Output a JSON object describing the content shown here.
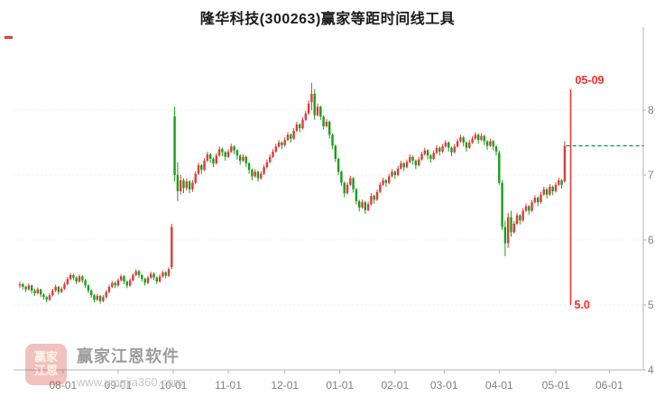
{
  "chart_data": {
    "type": "candlestick",
    "title": "隆华科技(300263)赢家等距时间线工具",
    "ylabel": "",
    "xlabel": "",
    "ylim": [
      4.0,
      8.6
    ],
    "y_ticks": [
      8,
      7,
      6,
      5,
      4
    ],
    "y_axis_side": "right",
    "grid": "faint-dotted",
    "x_ticks": [
      {
        "label": "08-01",
        "index": 14.5
      },
      {
        "label": "09-01",
        "index": 33
      },
      {
        "label": "10-01",
        "index": 51.5
      },
      {
        "label": "11-01",
        "index": 70
      },
      {
        "label": "12-01",
        "index": 89
      },
      {
        "label": "01-01",
        "index": 107.5
      },
      {
        "label": "02-01",
        "index": 126
      },
      {
        "label": "03-01",
        "index": 142.5
      },
      {
        "label": "04-01",
        "index": 161
      },
      {
        "label": "05-01",
        "index": 180
      },
      {
        "label": "06-01",
        "index": 198
      }
    ],
    "colors": {
      "up": "#e03a3a",
      "down": "#189e18",
      "marker_line": "#ff2a2a",
      "target_line": "#009b3c"
    },
    "annotations": {
      "vline": {
        "label_top": "05-09",
        "label_bottom": "5.0",
        "index": 185,
        "price_top": 8.32,
        "price_bottom": 5.0
      },
      "hline": {
        "price": 7.45,
        "from_index": 183.5,
        "to_index": 209.5
      }
    },
    "candles": [
      [
        5.3,
        5.36,
        5.26,
        5.32
      ],
      [
        5.32,
        5.34,
        5.24,
        5.28
      ],
      [
        5.28,
        5.3,
        5.2,
        5.24
      ],
      [
        5.24,
        5.33,
        5.22,
        5.3
      ],
      [
        5.3,
        5.31,
        5.18,
        5.22
      ],
      [
        5.22,
        5.25,
        5.14,
        5.18
      ],
      [
        5.18,
        5.27,
        5.16,
        5.24
      ],
      [
        5.24,
        5.25,
        5.12,
        5.16
      ],
      [
        5.16,
        5.18,
        5.08,
        5.12
      ],
      [
        5.12,
        5.14,
        5.04,
        5.08
      ],
      [
        5.08,
        5.18,
        5.06,
        5.15
      ],
      [
        5.15,
        5.25,
        5.13,
        5.22
      ],
      [
        5.22,
        5.31,
        5.2,
        5.28
      ],
      [
        5.28,
        5.29,
        5.16,
        5.2
      ],
      [
        5.2,
        5.28,
        5.18,
        5.25
      ],
      [
        5.25,
        5.35,
        5.23,
        5.32
      ],
      [
        5.32,
        5.43,
        5.3,
        5.4
      ],
      [
        5.4,
        5.49,
        5.38,
        5.46
      ],
      [
        5.46,
        5.48,
        5.38,
        5.42
      ],
      [
        5.42,
        5.44,
        5.32,
        5.36
      ],
      [
        5.36,
        5.47,
        5.34,
        5.44
      ],
      [
        5.44,
        5.46,
        5.34,
        5.38
      ],
      [
        5.38,
        5.4,
        5.26,
        5.3
      ],
      [
        5.3,
        5.32,
        5.18,
        5.22
      ],
      [
        5.22,
        5.24,
        5.11,
        5.15
      ],
      [
        5.15,
        5.17,
        5.04,
        5.08
      ],
      [
        5.08,
        5.17,
        5.06,
        5.14
      ],
      [
        5.14,
        5.15,
        5.02,
        5.06
      ],
      [
        5.06,
        5.15,
        5.04,
        5.12
      ],
      [
        5.12,
        5.23,
        5.1,
        5.2
      ],
      [
        5.2,
        5.31,
        5.18,
        5.28
      ],
      [
        5.28,
        5.37,
        5.26,
        5.34
      ],
      [
        5.34,
        5.36,
        5.26,
        5.3
      ],
      [
        5.3,
        5.41,
        5.28,
        5.38
      ],
      [
        5.38,
        5.47,
        5.36,
        5.44
      ],
      [
        5.44,
        5.46,
        5.32,
        5.36
      ],
      [
        5.36,
        5.38,
        5.26,
        5.3
      ],
      [
        5.3,
        5.41,
        5.28,
        5.38
      ],
      [
        5.38,
        5.49,
        5.36,
        5.46
      ],
      [
        5.46,
        5.55,
        5.44,
        5.52
      ],
      [
        5.52,
        5.54,
        5.42,
        5.46
      ],
      [
        5.46,
        5.48,
        5.36,
        5.4
      ],
      [
        5.4,
        5.42,
        5.3,
        5.34
      ],
      [
        5.34,
        5.45,
        5.32,
        5.42
      ],
      [
        5.42,
        5.51,
        5.4,
        5.48
      ],
      [
        5.48,
        5.5,
        5.38,
        5.42
      ],
      [
        5.42,
        5.44,
        5.32,
        5.36
      ],
      [
        5.36,
        5.47,
        5.34,
        5.44
      ],
      [
        5.44,
        5.53,
        5.42,
        5.5
      ],
      [
        5.5,
        5.52,
        5.41,
        5.45
      ],
      [
        5.45,
        5.58,
        5.43,
        5.55
      ],
      [
        5.58,
        6.25,
        5.55,
        6.2
      ],
      [
        7.9,
        8.05,
        6.9,
        7.0
      ],
      [
        7.0,
        7.2,
        6.6,
        6.75
      ],
      [
        6.75,
        7.0,
        6.7,
        6.92
      ],
      [
        6.92,
        6.95,
        6.72,
        6.8
      ],
      [
        6.8,
        6.95,
        6.76,
        6.9
      ],
      [
        6.9,
        6.92,
        6.72,
        6.78
      ],
      [
        6.78,
        6.92,
        6.74,
        6.88
      ],
      [
        6.88,
        7.06,
        6.86,
        7.02
      ],
      [
        7.02,
        7.19,
        7.0,
        7.15
      ],
      [
        7.15,
        7.17,
        7.02,
        7.08
      ],
      [
        7.08,
        7.26,
        7.06,
        7.22
      ],
      [
        7.22,
        7.36,
        7.2,
        7.32
      ],
      [
        7.32,
        7.34,
        7.19,
        7.25
      ],
      [
        7.25,
        7.27,
        7.12,
        7.18
      ],
      [
        7.18,
        7.34,
        7.16,
        7.3
      ],
      [
        7.3,
        7.44,
        7.28,
        7.4
      ],
      [
        7.4,
        7.42,
        7.29,
        7.35
      ],
      [
        7.35,
        7.37,
        7.22,
        7.28
      ],
      [
        7.28,
        7.4,
        7.26,
        7.36
      ],
      [
        7.36,
        7.48,
        7.34,
        7.44
      ],
      [
        7.44,
        7.46,
        7.32,
        7.38
      ],
      [
        7.38,
        7.4,
        7.24,
        7.3
      ],
      [
        7.3,
        7.32,
        7.16,
        7.22
      ],
      [
        7.22,
        7.32,
        7.2,
        7.28
      ],
      [
        7.28,
        7.3,
        7.12,
        7.18
      ],
      [
        7.18,
        7.2,
        7.02,
        7.08
      ],
      [
        7.08,
        7.1,
        6.92,
        6.98
      ],
      [
        6.98,
        7.09,
        6.96,
        7.05
      ],
      [
        7.05,
        7.07,
        6.9,
        6.95
      ],
      [
        6.95,
        7.06,
        6.93,
        7.02
      ],
      [
        7.02,
        7.16,
        7.0,
        7.12
      ],
      [
        7.12,
        7.24,
        7.1,
        7.2
      ],
      [
        7.2,
        7.32,
        7.18,
        7.28
      ],
      [
        7.28,
        7.4,
        7.26,
        7.36
      ],
      [
        7.36,
        7.48,
        7.34,
        7.44
      ],
      [
        7.44,
        7.54,
        7.42,
        7.5
      ],
      [
        7.5,
        7.52,
        7.4,
        7.46
      ],
      [
        7.46,
        7.58,
        7.44,
        7.54
      ],
      [
        7.54,
        7.66,
        7.52,
        7.62
      ],
      [
        7.62,
        7.64,
        7.5,
        7.56
      ],
      [
        7.56,
        7.72,
        7.54,
        7.68
      ],
      [
        7.68,
        7.82,
        7.66,
        7.78
      ],
      [
        7.78,
        7.8,
        7.66,
        7.72
      ],
      [
        7.72,
        7.89,
        7.7,
        7.85
      ],
      [
        7.85,
        7.99,
        7.83,
        7.95
      ],
      [
        7.95,
        8.15,
        7.93,
        8.1
      ],
      [
        8.12,
        8.42,
        8.0,
        8.25
      ],
      [
        8.25,
        8.32,
        7.85,
        7.92
      ],
      [
        7.92,
        8.1,
        7.9,
        8.05
      ],
      [
        8.05,
        8.07,
        7.85,
        7.9
      ],
      [
        7.9,
        7.92,
        7.7,
        7.75
      ],
      [
        7.75,
        7.86,
        7.73,
        7.82
      ],
      [
        7.82,
        7.84,
        7.56,
        7.62
      ],
      [
        7.62,
        7.64,
        7.4,
        7.45
      ],
      [
        7.45,
        7.47,
        7.2,
        7.25
      ],
      [
        7.25,
        7.27,
        7.0,
        7.05
      ],
      [
        7.05,
        7.07,
        6.83,
        6.88
      ],
      [
        6.88,
        6.9,
        6.66,
        6.72
      ],
      [
        6.72,
        6.89,
        6.7,
        6.85
      ],
      [
        6.85,
        6.99,
        6.83,
        6.95
      ],
      [
        6.95,
        6.97,
        6.73,
        6.78
      ],
      [
        6.78,
        6.8,
        6.55,
        6.6
      ],
      [
        6.6,
        6.62,
        6.44,
        6.5
      ],
      [
        6.5,
        6.62,
        6.48,
        6.58
      ],
      [
        6.58,
        6.6,
        6.4,
        6.46
      ],
      [
        6.46,
        6.59,
        6.44,
        6.55
      ],
      [
        6.55,
        6.72,
        6.53,
        6.68
      ],
      [
        6.68,
        6.7,
        6.56,
        6.62
      ],
      [
        6.62,
        6.78,
        6.6,
        6.74
      ],
      [
        6.74,
        6.89,
        6.72,
        6.85
      ],
      [
        6.85,
        6.96,
        6.83,
        6.92
      ],
      [
        6.92,
        6.94,
        6.82,
        6.88
      ],
      [
        6.88,
        7.02,
        6.86,
        6.98
      ],
      [
        6.98,
        7.09,
        6.96,
        7.05
      ],
      [
        7.05,
        7.07,
        6.94,
        7.0
      ],
      [
        7.0,
        7.14,
        6.98,
        7.1
      ],
      [
        7.1,
        7.22,
        7.08,
        7.18
      ],
      [
        7.18,
        7.2,
        7.06,
        7.12
      ],
      [
        7.12,
        7.24,
        7.1,
        7.2
      ],
      [
        7.2,
        7.32,
        7.18,
        7.28
      ],
      [
        7.28,
        7.3,
        7.16,
        7.22
      ],
      [
        7.22,
        7.24,
        7.09,
        7.15
      ],
      [
        7.15,
        7.28,
        7.13,
        7.24
      ],
      [
        7.24,
        7.36,
        7.22,
        7.32
      ],
      [
        7.32,
        7.42,
        7.3,
        7.38
      ],
      [
        7.38,
        7.4,
        7.24,
        7.3
      ],
      [
        7.3,
        7.32,
        7.19,
        7.25
      ],
      [
        7.25,
        7.38,
        7.23,
        7.34
      ],
      [
        7.34,
        7.46,
        7.32,
        7.42
      ],
      [
        7.42,
        7.44,
        7.3,
        7.36
      ],
      [
        7.36,
        7.48,
        7.34,
        7.44
      ],
      [
        7.44,
        7.54,
        7.42,
        7.5
      ],
      [
        7.5,
        7.52,
        7.36,
        7.42
      ],
      [
        7.42,
        7.44,
        7.29,
        7.35
      ],
      [
        7.35,
        7.48,
        7.33,
        7.44
      ],
      [
        7.44,
        7.56,
        7.42,
        7.52
      ],
      [
        7.52,
        7.62,
        7.5,
        7.58
      ],
      [
        7.58,
        7.6,
        7.44,
        7.5
      ],
      [
        7.5,
        7.52,
        7.36,
        7.42
      ],
      [
        7.42,
        7.54,
        7.4,
        7.5
      ],
      [
        7.5,
        7.6,
        7.48,
        7.56
      ],
      [
        7.56,
        7.66,
        7.54,
        7.62
      ],
      [
        7.62,
        7.64,
        7.48,
        7.54
      ],
      [
        7.54,
        7.64,
        7.52,
        7.6
      ],
      [
        7.6,
        7.62,
        7.46,
        7.52
      ],
      [
        7.52,
        7.54,
        7.39,
        7.45
      ],
      [
        7.45,
        7.56,
        7.43,
        7.52
      ],
      [
        7.52,
        7.54,
        7.38,
        7.44
      ],
      [
        7.44,
        7.46,
        7.3,
        7.36
      ],
      [
        7.34,
        7.38,
        6.85,
        6.88
      ],
      [
        6.88,
        6.92,
        6.15,
        6.2
      ],
      [
        6.2,
        6.3,
        5.75,
        5.95
      ],
      [
        5.95,
        6.42,
        5.88,
        6.35
      ],
      [
        6.35,
        6.45,
        6.05,
        6.12
      ],
      [
        6.12,
        6.29,
        6.1,
        6.25
      ],
      [
        6.25,
        6.42,
        6.23,
        6.38
      ],
      [
        6.38,
        6.4,
        6.24,
        6.3
      ],
      [
        6.3,
        6.49,
        6.28,
        6.45
      ],
      [
        6.45,
        6.56,
        6.43,
        6.52
      ],
      [
        6.52,
        6.54,
        6.39,
        6.45
      ],
      [
        6.45,
        6.62,
        6.43,
        6.58
      ],
      [
        6.58,
        6.69,
        6.56,
        6.65
      ],
      [
        6.65,
        6.67,
        6.52,
        6.58
      ],
      [
        6.58,
        6.74,
        6.56,
        6.7
      ],
      [
        6.7,
        6.82,
        6.68,
        6.78
      ],
      [
        6.78,
        6.8,
        6.64,
        6.7
      ],
      [
        6.7,
        6.86,
        6.68,
        6.82
      ],
      [
        6.82,
        6.84,
        6.69,
        6.75
      ],
      [
        6.75,
        6.89,
        6.73,
        6.85
      ],
      [
        6.85,
        6.96,
        6.83,
        6.92
      ],
      [
        6.92,
        6.94,
        6.79,
        6.85
      ],
      [
        6.9,
        7.52,
        6.88,
        7.45
      ]
    ]
  },
  "watermark": {
    "brand": "赢家江恩软件",
    "url": "www.yingjia360.com",
    "logo_line1": "赢家",
    "logo_line2": "江恩"
  }
}
